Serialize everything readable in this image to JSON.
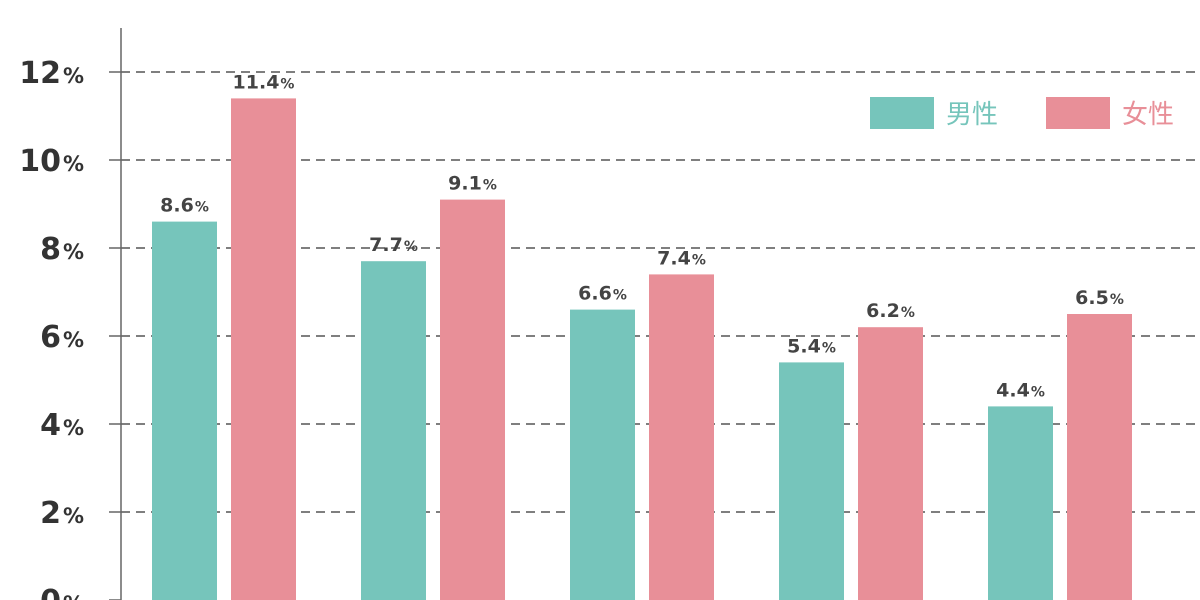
{
  "chart_data": {
    "type": "bar",
    "categories": [
      "",
      "",
      "",
      "",
      ""
    ],
    "series": [
      {
        "name": "男性",
        "values": [
          8.6,
          7.7,
          6.6,
          5.4,
          4.4
        ],
        "color": "#76c5bb"
      },
      {
        "name": "女性",
        "values": [
          11.4,
          9.1,
          7.4,
          6.2,
          6.5
        ],
        "color": "#e88f98"
      }
    ],
    "unit": "%",
    "ylim": [
      0,
      13
    ],
    "yticks": [
      0,
      2,
      4,
      6,
      8,
      10,
      12
    ],
    "grid": true,
    "legend_position": "top-right",
    "title": "",
    "xlabel": "",
    "ylabel": ""
  },
  "colors": {
    "axis": "#666666",
    "grid": "#555555",
    "label_text": "#444444",
    "tick_text": "#333333"
  }
}
